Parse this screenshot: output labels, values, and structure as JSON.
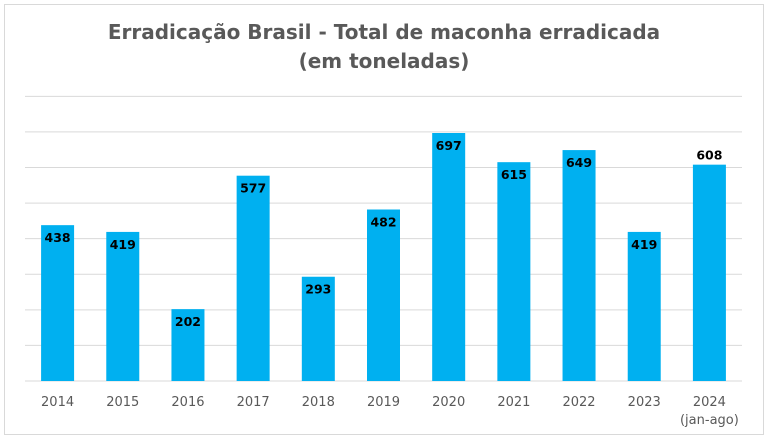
{
  "chart_data": {
    "type": "bar",
    "title_line1": "Erradicação Brasil - Total de maconha erradicada",
    "title_line2": "(em toneladas)",
    "categories": [
      "2014",
      "2015",
      "2016",
      "2017",
      "2018",
      "2019",
      "2020",
      "2021",
      "2022",
      "2023",
      "2024"
    ],
    "category_sublabels": [
      "",
      "",
      "",
      "",
      "",
      "",
      "",
      "",
      "",
      "",
      "(jan-ago)"
    ],
    "values": [
      438,
      419,
      202,
      577,
      293,
      482,
      697,
      615,
      649,
      419,
      608
    ],
    "ylim": [
      0,
      800
    ],
    "y_gridline_step": 100,
    "y_tick_labels_shown": false,
    "grid": true,
    "legend": "none",
    "bar_color": "#00b0f0",
    "label_color": "#000000",
    "xlabel": "",
    "ylabel": ""
  }
}
